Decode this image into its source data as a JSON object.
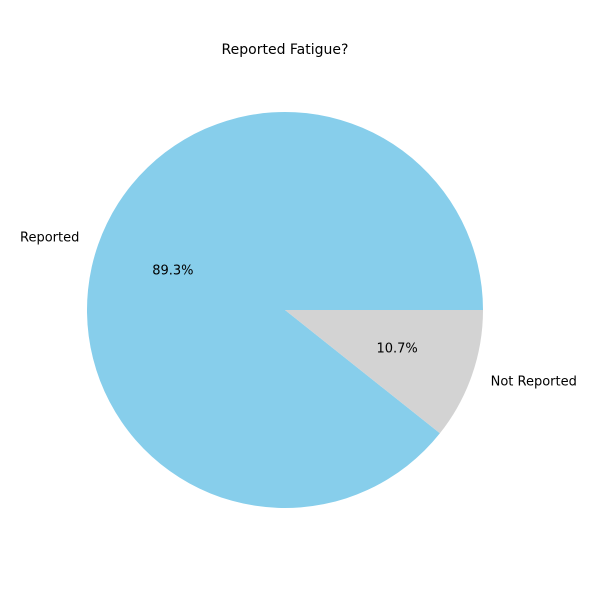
{
  "chart_data": {
    "type": "pie",
    "title": "Reported Fatigue?",
    "start_angle_deg": 0,
    "direction": "counterclockwise",
    "slices": [
      {
        "label": "Reported",
        "value": 89.3,
        "pct_label": "89.3%",
        "color": "#87CEEB"
      },
      {
        "label": "Not Reported",
        "value": 10.7,
        "pct_label": "10.7%",
        "color": "#D3D3D3"
      }
    ]
  }
}
